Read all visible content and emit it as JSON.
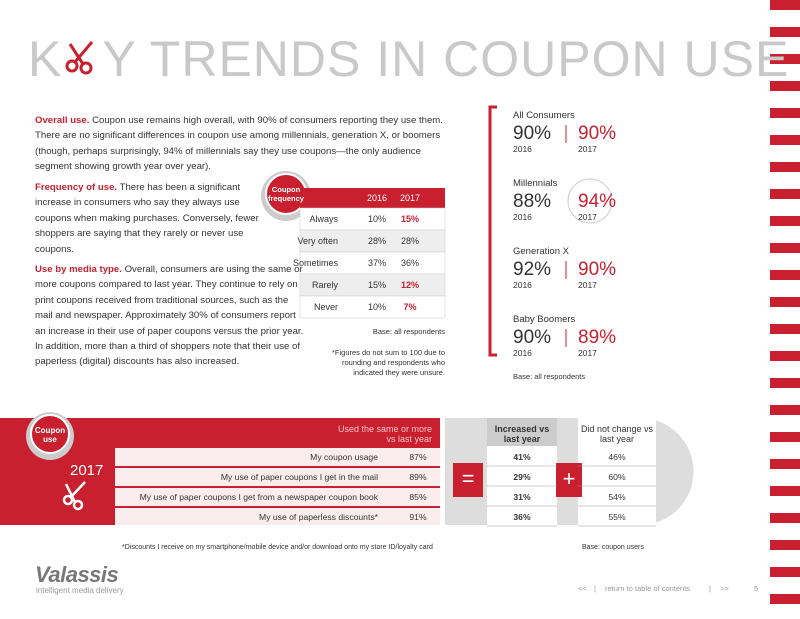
{
  "header": {
    "title_start": "K",
    "title_end": "Y TRENDS IN COUPON USE"
  },
  "intro": [
    {
      "heading": "Overall use.",
      "text": "Coupon use remains high overall, with 90% of consumers reporting they use them. There are no significant differences in coupon use among millennials, generation X, or boomers (though, perhaps surprisingly, 94% of millennials say they use coupons—the only audience segment showing growth year over year)."
    },
    {
      "heading": "Frequency of use.",
      "text": "There has been a significant increase in consumers who say they always use coupons when making purchases. Conversely, fewer shoppers are saying that they rarely or never use coupons."
    },
    {
      "heading": "Use by media type.",
      "text": "Overall, consumers are using the same or more coupons compared to last year. They continue to rely on print coupons received from traditional sources, such as the mail and newspaper. Approximately 30% of consumers report an increase in their use of paper coupons versus the prior year. In addition, more than a third of shoppers note that their use of paperless (digital) discounts has also increased."
    }
  ],
  "frequency_table": {
    "badge": "Coupon frequency",
    "columns": [
      "2016",
      "2017"
    ],
    "rows": [
      {
        "label": "Always",
        "values": [
          "10%",
          "15%"
        ],
        "highlight": true
      },
      {
        "label": "Very often",
        "values": [
          "28%",
          "28%"
        ],
        "highlight": false
      },
      {
        "label": "Sometimes",
        "values": [
          "37%",
          "36%"
        ],
        "highlight": false
      },
      {
        "label": "Rarely",
        "values": [
          "15%",
          "12%"
        ],
        "highlight": true
      },
      {
        "label": "Never",
        "values": [
          "10%",
          "7%"
        ],
        "highlight": true
      }
    ],
    "base": "Base: all respondents",
    "footnote": "*Figures do not sum to 100 due to rounding and respondents who indicated they were unsure."
  },
  "segments": {
    "items": [
      {
        "label": "All Consumers",
        "value_2016": "90%",
        "year_2016": "2016",
        "value_2017": "90%",
        "year_2017": "2017"
      },
      {
        "label": "Millennials",
        "value_2016": "88%",
        "year_2016": "2016",
        "value_2017": "94%",
        "year_2017": "2017"
      },
      {
        "label": "Generation X",
        "value_2016": "92%",
        "year_2016": "2016",
        "value_2017": "90%",
        "year_2017": "2017"
      },
      {
        "label": "Baby Boomers",
        "value_2016": "90%",
        "year_2016": "2016",
        "value_2017": "89%",
        "year_2017": "2017"
      }
    ],
    "base": "Base: all respondents"
  },
  "coupon_use": {
    "badge": "Coupon use",
    "year": "2017",
    "header": "Used the same or more vs last year",
    "increased_header": "Increased vs last year",
    "unchanged_header": "Did not change vs last year",
    "equals": "=",
    "plus": "+",
    "rows": [
      {
        "label": "My coupon usage",
        "same_or_more": "87%",
        "increased": "41%",
        "unchanged": "46%"
      },
      {
        "label": "My use of paper coupons I get in the mail",
        "same_or_more": "89%",
        "increased": "29%",
        "unchanged": "60%"
      },
      {
        "label": "My use of paper coupons I get from a newspaper coupon book",
        "same_or_more": "85%",
        "increased": "31%",
        "unchanged": "54%"
      },
      {
        "label": "My use of paperless discounts*",
        "same_or_more": "91%",
        "increased": "36%",
        "unchanged": "55%"
      }
    ],
    "footnote": "*Discounts I receive on my smartphone/mobile device and/or download onto my store ID/loyalty card",
    "base": "Base: coupon users"
  },
  "footer": {
    "logo": "Valassis",
    "tagline": "intelligent media delivery",
    "prev": "<<",
    "sep1": "|",
    "toc": "return to table of contents",
    "sep2": "|",
    "next": ">>",
    "page": "5"
  }
}
